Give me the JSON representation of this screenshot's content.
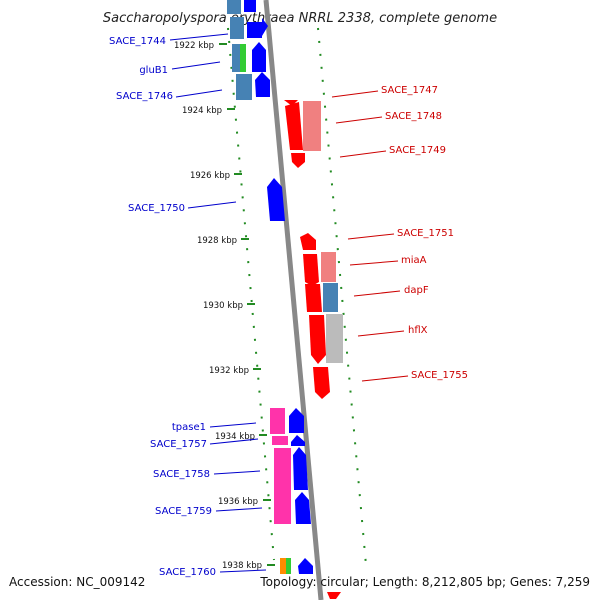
{
  "title": "Saccharopolyspora erythraea NRRL 2338, complete genome",
  "footer": {
    "accession": "Accession: NC_009142",
    "topology": "Topology: circular; Length: 8,212,805 bp; Genes: 7,259"
  },
  "ticks": [
    "1922 kbp",
    "1924 kbp",
    "1926 kbp",
    "1928 kbp",
    "1930 kbp",
    "1932 kbp",
    "1934 kbp",
    "1936 kbp",
    "1938 kbp"
  ],
  "left_labels": [
    "SACE_1744",
    "gluB1",
    "SACE_1746",
    "SACE_1750",
    "tpase1",
    "SACE_1757",
    "SACE_1758",
    "SACE_1759",
    "SACE_1760"
  ],
  "right_labels": [
    "SACE_1747",
    "SACE_1748",
    "SACE_1749",
    "SACE_1751",
    "miaA",
    "dapF",
    "hflX",
    "SACE_1755"
  ],
  "colors": {
    "forward": "#0000ff",
    "reverse": "#ff0000",
    "transposase": "#ff33aa",
    "tick": "#228b22",
    "axis": "#888888",
    "label_left": "#0000cc",
    "label_right": "#cc0000"
  }
}
